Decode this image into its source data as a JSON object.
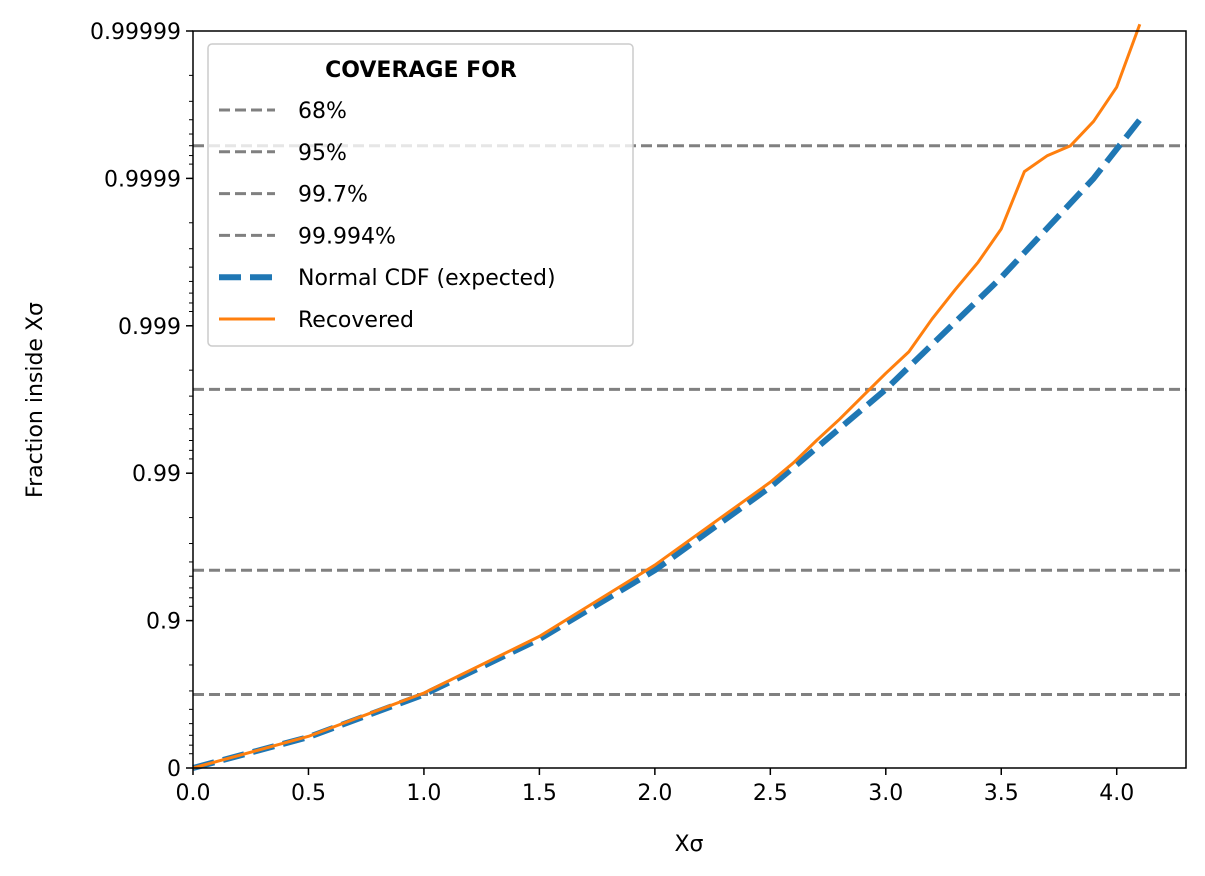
{
  "chart_data": {
    "type": "line",
    "xlabel": "Xσ",
    "ylabel": "Fraction inside Xσ",
    "xlim": [
      0.0,
      4.3
    ],
    "ylim": [
      0,
      0.99999
    ],
    "y_scale": "logit-like (ticks at 1 - 10^-k)",
    "grid": false,
    "x_ticks": [
      0.0,
      0.5,
      1.0,
      1.5,
      2.0,
      2.5,
      3.0,
      3.5,
      4.0
    ],
    "x_tick_labels": [
      "0.0",
      "0.5",
      "1.0",
      "1.5",
      "2.0",
      "2.5",
      "3.0",
      "3.5",
      "4.0"
    ],
    "y_ticks": [
      0,
      0.9,
      0.99,
      0.999,
      0.9999,
      0.99999
    ],
    "y_tick_labels": [
      "0",
      "0.9",
      "0.99",
      "0.999",
      "0.9999",
      "0.99999"
    ],
    "legend": {
      "title": "COVERAGE FOR",
      "placement": "top-left",
      "entries": [
        {
          "label": "68%",
          "style": "dashed",
          "color": "#808080"
        },
        {
          "label": "95%",
          "style": "dashed",
          "color": "#808080"
        },
        {
          "label": "99.7%",
          "style": "dashed",
          "color": "#808080"
        },
        {
          "label": "99.994%",
          "style": "dashed",
          "color": "#808080"
        },
        {
          "label": "Normal CDF (expected)",
          "style": "thick-dashed",
          "color": "#1f77b4"
        },
        {
          "label": "Recovered",
          "style": "solid",
          "color": "#ff7f0e"
        }
      ]
    },
    "hlines": [
      0.6827,
      0.9545,
      0.9973,
      0.99994
    ],
    "series": [
      {
        "name": "Normal CDF (expected)",
        "color": "#1f77b4",
        "x": [
          0.0,
          0.5,
          1.0,
          1.5,
          2.0,
          2.5,
          3.0,
          3.5,
          3.9,
          4.1
        ],
        "y": [
          0.0,
          0.383,
          0.6827,
          0.8664,
          0.9545,
          0.9876,
          0.9973,
          0.99953,
          0.9999,
          0.99996
        ]
      },
      {
        "name": "Recovered",
        "color": "#ff7f0e",
        "x": [
          0.0,
          0.5,
          1.0,
          1.5,
          2.0,
          2.5,
          2.6,
          2.7,
          2.8,
          2.9,
          3.0,
          3.1,
          3.2,
          3.3,
          3.4,
          3.5,
          3.6,
          3.7,
          3.8,
          3.9,
          4.0,
          4.1
        ],
        "y": [
          0.0,
          0.39,
          0.69,
          0.872,
          0.958,
          0.9885,
          0.9915,
          0.994,
          0.9957,
          0.997,
          0.9979,
          0.9985,
          0.9991,
          0.99943,
          0.99963,
          0.99978,
          0.99991,
          0.99993,
          0.99994,
          0.999959,
          0.999976,
          0.999991
        ]
      }
    ]
  }
}
